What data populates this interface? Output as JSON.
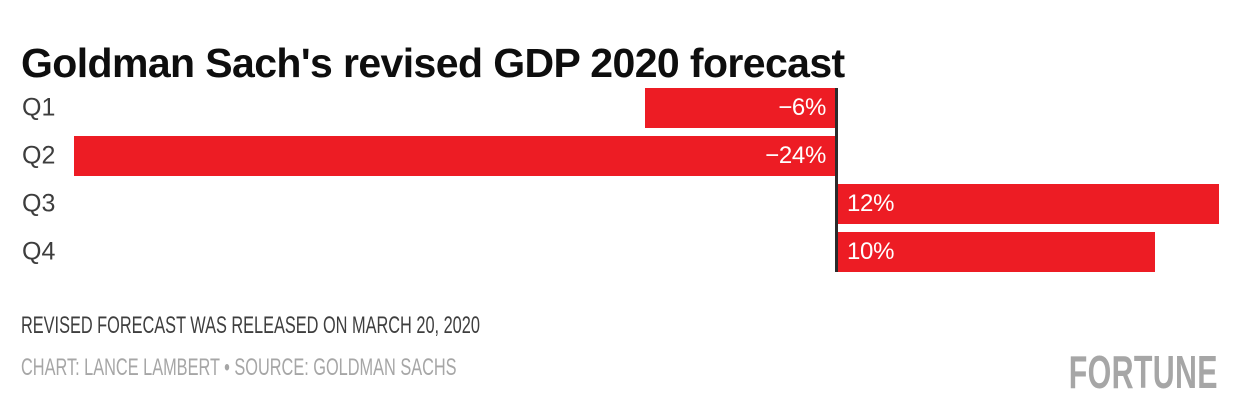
{
  "header": {
    "title": "Goldman Sach's revised GDP 2020 forecast"
  },
  "chart_data": {
    "type": "bar",
    "orientation": "horizontal",
    "title": "Goldman Sach's revised GDP 2020 forecast",
    "categories": [
      "Q1",
      "Q2",
      "Q3",
      "Q4"
    ],
    "values": [
      -6,
      -24,
      12,
      10
    ],
    "value_labels": [
      "−6%",
      "−24%",
      "12%",
      "10%"
    ],
    "unit": "%",
    "xlim": [
      -24,
      12
    ],
    "grid": "off",
    "legend": "none",
    "bar_color": "#ed1c24",
    "baseline_color": "#2b2b2b",
    "value_label_color": "#ffffff",
    "category_label_color": "#3d3d3d"
  },
  "footer": {
    "note": "REVISED FORECAST WAS RELEASED ON MARCH 20, 2020",
    "credit": "CHART: LANCE LAMBERT • SOURCE: GOLDMAN SACHS",
    "logo": "FORTUNE"
  }
}
